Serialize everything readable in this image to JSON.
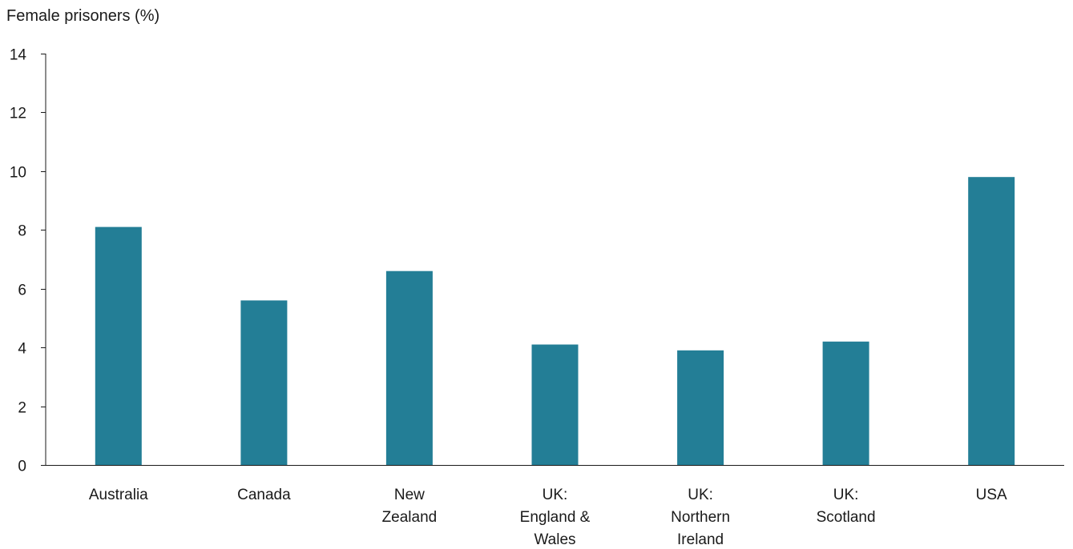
{
  "chart_data": {
    "type": "bar",
    "title": "",
    "xlabel": "",
    "ylabel": "Female prisoners (%)",
    "ylim": [
      0,
      14
    ],
    "yticks": [
      "0",
      "2",
      "4",
      "6",
      "8",
      "10",
      "12",
      "14"
    ],
    "categories": [
      "Australia",
      "Canada",
      "New Zealand",
      "UK: England & Wales",
      "UK: Northern Ireland",
      "UK: Scotland",
      "USA"
    ],
    "category_lines": [
      [
        "Australia"
      ],
      [
        "Canada"
      ],
      [
        "New",
        "Zealand"
      ],
      [
        "UK:",
        "England &",
        "Wales"
      ],
      [
        "UK:",
        "Northern",
        "Ireland"
      ],
      [
        "UK:",
        "Scotland"
      ],
      [
        "USA"
      ]
    ],
    "values": [
      8.1,
      5.6,
      6.6,
      4.1,
      3.9,
      4.2,
      9.8
    ],
    "bar_color": "#237e96",
    "grid": false,
    "legend": "none"
  }
}
